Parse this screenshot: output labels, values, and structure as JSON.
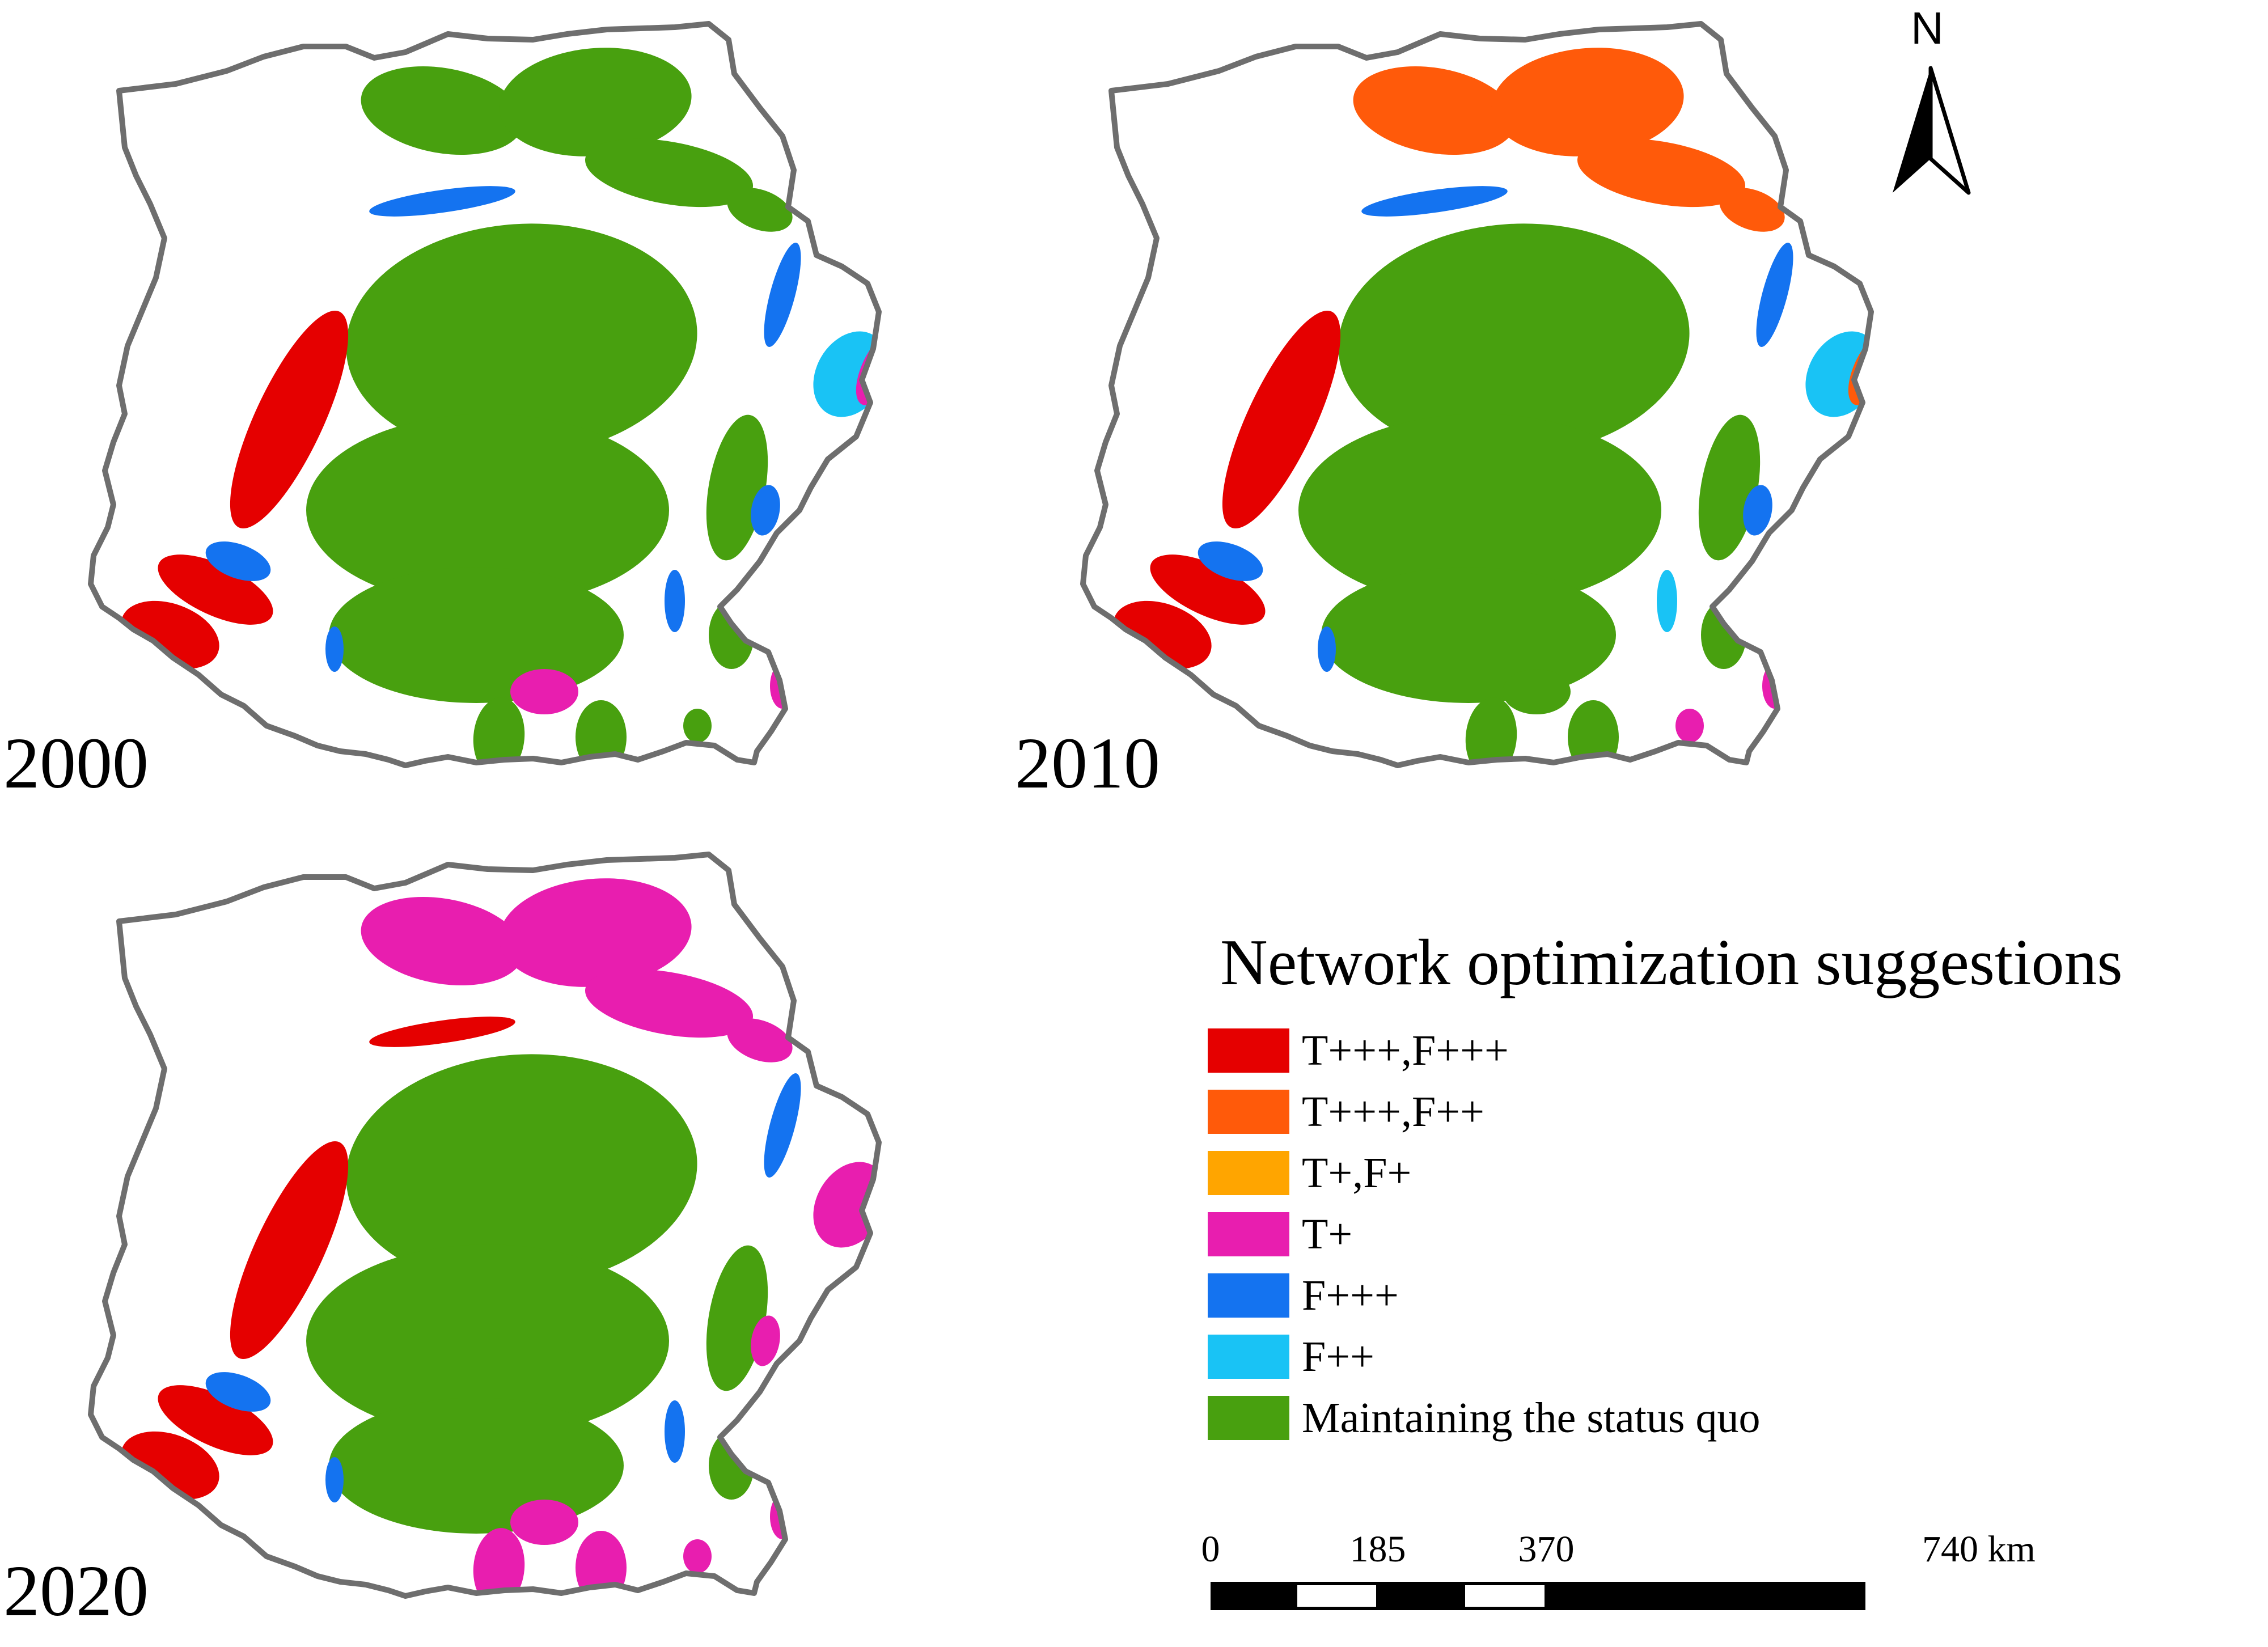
{
  "maps": [
    {
      "year": "2000",
      "north_class": "Maintaining the status quo"
    },
    {
      "year": "2010",
      "north_class": "T+++,F++"
    },
    {
      "year": "2020",
      "north_class": "T+"
    }
  ],
  "legend": {
    "title": "Network optimization suggestions",
    "items": [
      {
        "label": "T+++,F+++",
        "color": "#e50000"
      },
      {
        "label": "T+++,F++",
        "color": "#ff5a0a"
      },
      {
        "label": "T+,F+",
        "color": "#ffa500"
      },
      {
        "label": "T+",
        "color": "#e81eaf"
      },
      {
        "label": "F+++",
        "color": "#1473f0"
      },
      {
        "label": "F++",
        "color": "#19c3f5"
      },
      {
        "label": "Maintaining the status quo",
        "color": "#48a00f"
      }
    ]
  },
  "scale_bar": {
    "ticks": [
      "0",
      "185",
      "370",
      "740 km"
    ]
  },
  "north_arrow": {
    "label": "N",
    "icon": "north-arrow-icon"
  },
  "colors": {
    "boundary": "#6e6e6e",
    "background": "#ffffff"
  }
}
